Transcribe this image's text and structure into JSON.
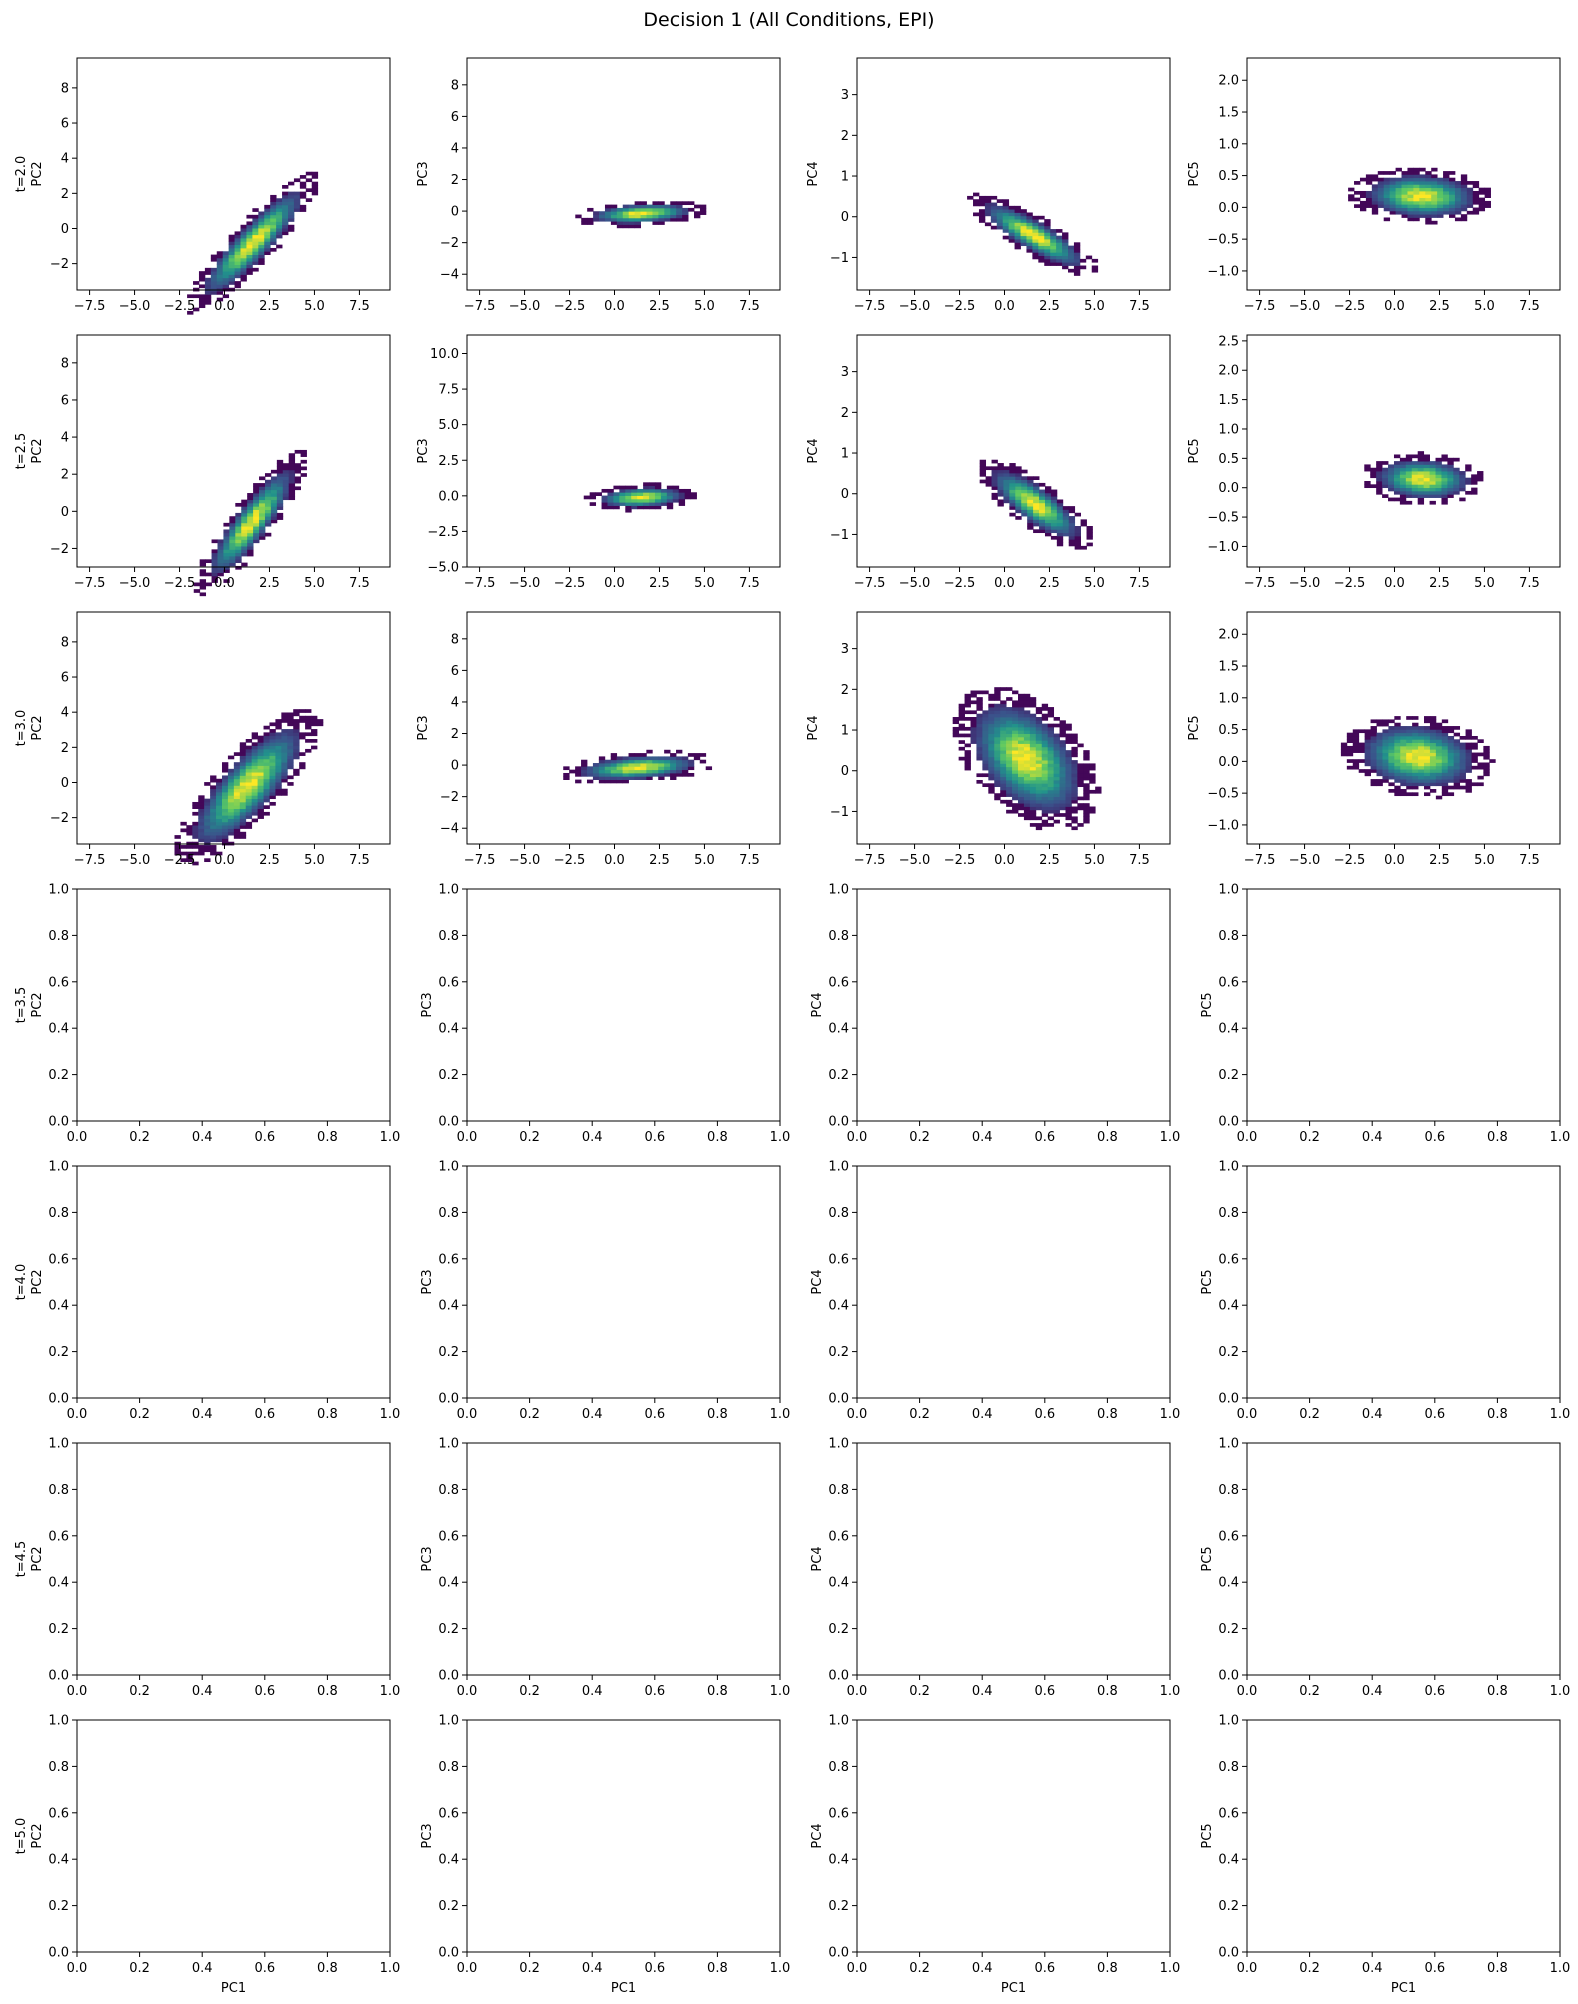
{
  "title": "Decision 1 (All Conditions, EPI)",
  "colormap": [
    "#440154",
    "#3b528b",
    "#21918c",
    "#5ec962",
    "#fde725"
  ],
  "chart_data": {
    "type": "heatmap",
    "layout": "7x4 grid of 2D histograms",
    "row_labels": [
      "t=2.0",
      "t=2.5",
      "t=3.0",
      "t=3.5",
      "t=4.0",
      "t=4.5",
      "t=5.0"
    ],
    "column_ylabels": [
      "PC2",
      "PC3",
      "PC4",
      "PC5"
    ],
    "xlabel": "PC1",
    "xlim": [
      -8.2,
      9.2
    ],
    "empty_rows_range": [
      0,
      1
    ],
    "panels": [
      [
        {
          "ylabel": "PC2",
          "xlim": [
            -8.2,
            9.2
          ],
          "ylim": [
            -3.5,
            9.7
          ],
          "xticks": [
            -7.5,
            -5.0,
            -2.5,
            0.0,
            2.5,
            5.0,
            7.5
          ],
          "yticks": [
            -2,
            0,
            2,
            4,
            6,
            8
          ],
          "blob": {
            "cx": 1.6,
            "cy": -0.8,
            "sx": 1.25,
            "sy": 1.35,
            "rho": 0.9
          }
        },
        {
          "ylabel": "PC3",
          "xlim": [
            -8.2,
            9.2
          ],
          "ylim": [
            -5.0,
            9.7
          ],
          "xticks": [
            -7.5,
            -5.0,
            -2.5,
            0.0,
            2.5,
            5.0,
            7.5
          ],
          "yticks": [
            -4,
            -2,
            0,
            2,
            4,
            6,
            8
          ],
          "blob": {
            "cx": 1.5,
            "cy": -0.15,
            "sx": 1.25,
            "sy": 0.28,
            "rho": 0.3
          }
        },
        {
          "ylabel": "PC4",
          "xlim": [
            -8.2,
            9.2
          ],
          "ylim": [
            -1.8,
            3.9
          ],
          "xticks": [
            -7.5,
            -5.0,
            -2.5,
            0.0,
            2.5,
            5.0,
            7.5
          ],
          "yticks": [
            -1,
            0,
            1,
            2,
            3
          ],
          "blob": {
            "cx": 1.6,
            "cy": -0.45,
            "sx": 1.25,
            "sy": 0.35,
            "rho": -0.85
          }
        },
        {
          "ylabel": "PC5",
          "xlim": [
            -8.2,
            9.2
          ],
          "ylim": [
            -1.3,
            2.35
          ],
          "xticks": [
            -7.5,
            -5.0,
            -2.5,
            0.0,
            2.5,
            5.0,
            7.5
          ],
          "yticks": [
            -1.0,
            -0.5,
            0.0,
            0.5,
            1.0,
            1.5,
            2.0
          ],
          "blob": {
            "cx": 1.5,
            "cy": 0.18,
            "sx": 1.35,
            "sy": 0.15,
            "rho": -0.1
          }
        }
      ],
      [
        {
          "ylabel": "PC2",
          "xlim": [
            -8.2,
            9.2
          ],
          "ylim": [
            -3.0,
            9.5
          ],
          "xticks": [
            -7.5,
            -5.0,
            -2.5,
            0.0,
            2.5,
            5.0,
            7.5
          ],
          "yticks": [
            -2,
            0,
            2,
            4,
            6,
            8
          ],
          "blob": {
            "cx": 1.5,
            "cy": -0.6,
            "sx": 1.05,
            "sy": 1.3,
            "rho": 0.88
          }
        },
        {
          "ylabel": "PC3",
          "xlim": [
            -8.2,
            9.2
          ],
          "ylim": [
            -5.0,
            11.3
          ],
          "xticks": [
            -7.5,
            -5.0,
            -2.5,
            0.0,
            2.5,
            5.0,
            7.5
          ],
          "yticks": [
            -5.0,
            -2.5,
            0.0,
            2.5,
            5.0,
            7.5,
            10.0
          ],
          "blob": {
            "cx": 1.5,
            "cy": -0.1,
            "sx": 1.05,
            "sy": 0.32,
            "rho": 0.2
          }
        },
        {
          "ylabel": "PC4",
          "xlim": [
            -8.2,
            9.2
          ],
          "ylim": [
            -1.8,
            3.9
          ],
          "xticks": [
            -7.5,
            -5.0,
            -2.5,
            0.0,
            2.5,
            5.0,
            7.5
          ],
          "yticks": [
            -1,
            0,
            1,
            2,
            3
          ],
          "blob": {
            "cx": 1.7,
            "cy": -0.25,
            "sx": 1.1,
            "sy": 0.38,
            "rho": -0.8
          }
        },
        {
          "ylabel": "PC5",
          "xlim": [
            -8.2,
            9.2
          ],
          "ylim": [
            -1.35,
            2.6
          ],
          "xticks": [
            -7.5,
            -5.0,
            -2.5,
            0.0,
            2.5,
            5.0,
            7.5
          ],
          "yticks": [
            -1.0,
            -0.5,
            0.0,
            0.5,
            1.0,
            1.5,
            2.0,
            2.5
          ],
          "blob": {
            "cx": 1.6,
            "cy": 0.15,
            "sx": 1.15,
            "sy": 0.15,
            "rho": -0.1
          }
        }
      ],
      [
        {
          "ylabel": "PC2",
          "xlim": [
            -8.2,
            9.2
          ],
          "ylim": [
            -3.5,
            9.7
          ],
          "xticks": [
            -7.5,
            -5.0,
            -2.5,
            0.0,
            2.5,
            5.0,
            7.5
          ],
          "yticks": [
            -2,
            0,
            2,
            4,
            6,
            8
          ],
          "blob": {
            "cx": 1.3,
            "cy": -0.2,
            "sx": 1.35,
            "sy": 1.5,
            "rho": 0.8
          }
        },
        {
          "ylabel": "PC3",
          "xlim": [
            -8.2,
            9.2
          ],
          "ylim": [
            -5.0,
            9.7
          ],
          "xticks": [
            -7.5,
            -5.0,
            -2.5,
            0.0,
            2.5,
            5.0,
            7.5
          ],
          "yticks": [
            -4,
            -2,
            0,
            2,
            4,
            6,
            8
          ],
          "blob": {
            "cx": 1.3,
            "cy": -0.15,
            "sx": 1.45,
            "sy": 0.35,
            "rho": 0.35
          }
        },
        {
          "ylabel": "PC4",
          "xlim": [
            -8.2,
            9.2
          ],
          "ylim": [
            -1.8,
            3.9
          ],
          "xticks": [
            -7.5,
            -5.0,
            -2.5,
            0.0,
            2.5,
            5.0,
            7.5
          ],
          "yticks": [
            -1,
            0,
            1,
            2,
            3
          ],
          "blob": {
            "cx": 1.2,
            "cy": 0.3,
            "sx": 1.35,
            "sy": 0.6,
            "rho": -0.45
          }
        },
        {
          "ylabel": "PC5",
          "xlim": [
            -8.2,
            9.2
          ],
          "ylim": [
            -1.3,
            2.35
          ],
          "xticks": [
            -7.5,
            -5.0,
            -2.5,
            0.0,
            2.5,
            5.0,
            7.5
          ],
          "yticks": [
            -1.0,
            -0.5,
            0.0,
            0.5,
            1.0,
            1.5,
            2.0
          ],
          "blob": {
            "cx": 1.3,
            "cy": 0.08,
            "sx": 1.4,
            "sy": 0.22,
            "rho": -0.15
          }
        }
      ],
      [
        {
          "ylabel": "PC2",
          "empty": true
        },
        {
          "ylabel": "PC3",
          "empty": true
        },
        {
          "ylabel": "PC4",
          "empty": true
        },
        {
          "ylabel": "PC5",
          "empty": true
        }
      ],
      [
        {
          "ylabel": "PC2",
          "empty": true
        },
        {
          "ylabel": "PC3",
          "empty": true
        },
        {
          "ylabel": "PC4",
          "empty": true
        },
        {
          "ylabel": "PC5",
          "empty": true
        }
      ],
      [
        {
          "ylabel": "PC2",
          "empty": true
        },
        {
          "ylabel": "PC3",
          "empty": true
        },
        {
          "ylabel": "PC4",
          "empty": true
        },
        {
          "ylabel": "PC5",
          "empty": true
        }
      ],
      [
        {
          "ylabel": "PC2",
          "empty": true
        },
        {
          "ylabel": "PC3",
          "empty": true
        },
        {
          "ylabel": "PC4",
          "empty": true
        },
        {
          "ylabel": "PC5",
          "empty": true
        }
      ]
    ],
    "empty_ticks": [
      0.0,
      0.2,
      0.4,
      0.6,
      0.8,
      1.0
    ],
    "empty_tick_labels": [
      "0.0",
      "0.2",
      "0.4",
      "0.6",
      "0.8",
      "1.0"
    ]
  }
}
